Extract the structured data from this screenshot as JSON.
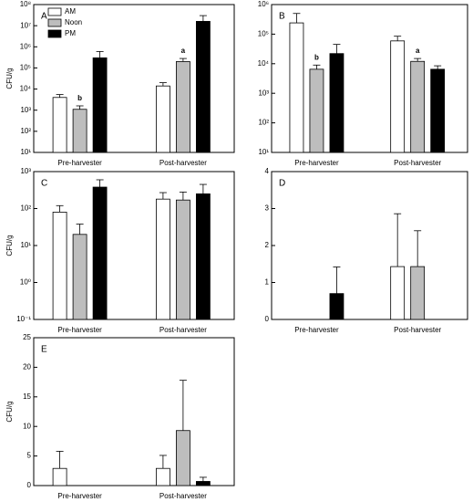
{
  "chart_data": [
    {
      "type": "bar",
      "title": "A",
      "ylabel": "CFU/g",
      "log_scale": true,
      "categories": [
        "Pre-harvester",
        "Post-harvester"
      ],
      "series": [
        {
          "name": "AM",
          "color": "#ffffff",
          "values": [
            4000,
            14000
          ],
          "errors": [
            1500,
            6000
          ]
        },
        {
          "name": "Noon",
          "color": "#bdbdbd",
          "values": [
            1100,
            200000
          ],
          "errors": [
            500,
            80000
          ]
        },
        {
          "name": "PM",
          "color": "#000000",
          "values": [
            300000,
            16000000
          ],
          "errors": [
            300000,
            14000000
          ]
        }
      ],
      "annotations": [
        {
          "text": "b",
          "category": 0,
          "series": 1
        },
        {
          "text": "a",
          "category": 1,
          "series": 1
        }
      ],
      "ylim": [
        10,
        100000000
      ],
      "yticks": [
        {
          "value": 10,
          "label": "10¹"
        },
        {
          "value": 100,
          "label": "10²"
        },
        {
          "value": 1000,
          "label": "10³"
        },
        {
          "value": 10000,
          "label": "10⁴"
        },
        {
          "value": 100000,
          "label": "10⁵"
        },
        {
          "value": 1000000,
          "label": "10⁶"
        },
        {
          "value": 10000000,
          "label": "10⁷"
        },
        {
          "value": 100000000,
          "label": "10⁸"
        }
      ]
    },
    {
      "type": "bar",
      "title": "B",
      "log_scale": true,
      "categories": [
        "Pre-harvester",
        "Post-harvester"
      ],
      "series": [
        {
          "color": "#ffffff",
          "values": [
            240000,
            59000
          ],
          "errors": [
            260000,
            26000
          ]
        },
        {
          "color": "#bdbdbd",
          "values": [
            6500,
            12000
          ],
          "errors": [
            2500,
            3000
          ]
        },
        {
          "color": "#000000",
          "values": [
            22000,
            6500
          ],
          "errors": [
            23000,
            2000
          ]
        }
      ],
      "annotations": [
        {
          "text": "b",
          "category": 0,
          "series": 1
        },
        {
          "text": "a",
          "category": 1,
          "series": 1
        }
      ],
      "ylim": [
        10,
        1000000
      ],
      "yticks": [
        {
          "value": 10,
          "label": "10¹"
        },
        {
          "value": 100,
          "label": "10²"
        },
        {
          "value": 1000,
          "label": "10³"
        },
        {
          "value": 10000,
          "label": "10⁴"
        },
        {
          "value": 100000,
          "label": "10⁵"
        },
        {
          "value": 1000000,
          "label": "10⁶"
        }
      ]
    },
    {
      "type": "bar",
      "title": "C",
      "ylabel": "CFU/g",
      "log_scale": true,
      "categories": [
        "Pre-harvester",
        "Post-harvester"
      ],
      "series": [
        {
          "color": "#ffffff",
          "values": [
            80,
            180
          ],
          "errors": [
            40,
            90
          ]
        },
        {
          "color": "#bdbdbd",
          "values": [
            20,
            170
          ],
          "errors": [
            18,
            110
          ]
        },
        {
          "color": "#000000",
          "values": [
            380,
            250
          ],
          "errors": [
            220,
            200
          ]
        }
      ],
      "ylim": [
        0.1,
        1000
      ],
      "yticks": [
        {
          "value": 0.1,
          "label": "10⁻¹"
        },
        {
          "value": 1,
          "label": "10⁰"
        },
        {
          "value": 10,
          "label": "10¹"
        },
        {
          "value": 100,
          "label": "10²"
        },
        {
          "value": 1000,
          "label": "10³"
        }
      ]
    },
    {
      "type": "bar",
      "title": "D",
      "log_scale": false,
      "categories": [
        "Pre-harvester",
        "Post-harvester"
      ],
      "series": [
        {
          "color": "#ffffff",
          "values": [
            0,
            1.43
          ],
          "errors": [
            null,
            1.43
          ]
        },
        {
          "color": "#bdbdbd",
          "values": [
            0,
            1.43
          ],
          "errors": [
            null,
            0.97
          ]
        },
        {
          "color": "#000000",
          "values": [
            0.7,
            0
          ],
          "errors": [
            0.72,
            null
          ]
        }
      ],
      "ylim": [
        0,
        4
      ],
      "yticks": [
        0,
        1,
        2,
        3,
        4
      ]
    },
    {
      "type": "bar",
      "title": "E",
      "ylabel": "CFU/g",
      "log_scale": false,
      "categories": [
        "Pre-harvester",
        "Post-harvester"
      ],
      "series": [
        {
          "color": "#ffffff",
          "values": [
            2.9,
            2.9
          ],
          "errors": [
            2.9,
            2.2
          ]
        },
        {
          "color": "#bdbdbd",
          "values": [
            0,
            9.3
          ],
          "errors": [
            null,
            8.5
          ]
        },
        {
          "color": "#000000",
          "values": [
            0,
            0.7
          ],
          "errors": [
            null,
            0.7
          ]
        }
      ],
      "ylim": [
        0,
        25
      ],
      "yticks": [
        0,
        5,
        10,
        15,
        20,
        25
      ]
    }
  ]
}
